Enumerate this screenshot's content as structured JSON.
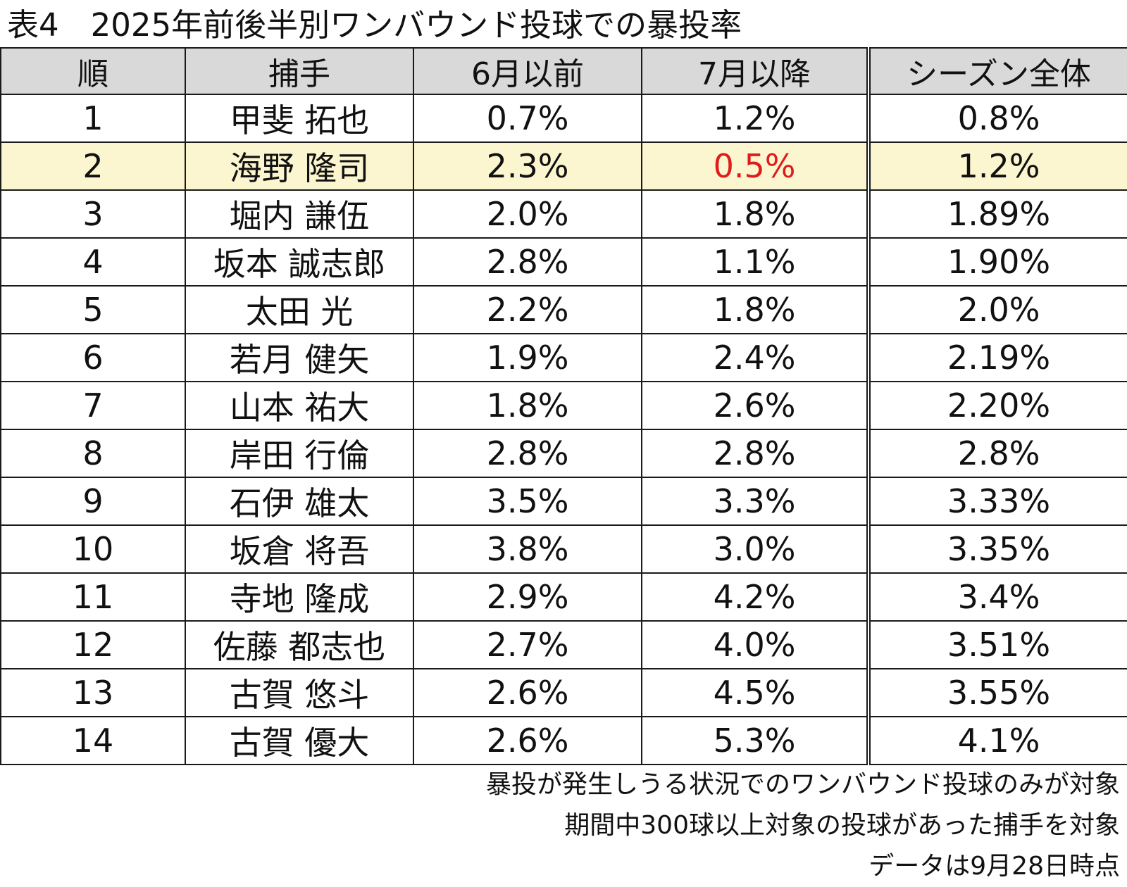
{
  "title": "表4　2025年前後半別ワンバウンド投球での暴投率",
  "colors": {
    "header_bg": "#d9d9d9",
    "highlight_bg": "#fbf6cf",
    "highlight_text": "#e01b1b"
  },
  "chart_data": {
    "type": "table",
    "title": "表4　2025年前後半別ワンバウンド投球での暴投率",
    "columns": [
      "順",
      "捕手",
      "6月以前",
      "7月以降",
      "シーズン全体"
    ],
    "rows": [
      [
        "1",
        "甲斐 拓也",
        "0.7%",
        "1.2%",
        "0.8%"
      ],
      [
        "2",
        "海野 隆司",
        "2.3%",
        "0.5%",
        "1.2%"
      ],
      [
        "3",
        "堀内 謙伍",
        "2.0%",
        "1.8%",
        "1.89%"
      ],
      [
        "4",
        "坂本 誠志郎",
        "2.8%",
        "1.1%",
        "1.90%"
      ],
      [
        "5",
        "太田 光",
        "2.2%",
        "1.8%",
        "2.0%"
      ],
      [
        "6",
        "若月 健矢",
        "1.9%",
        "2.4%",
        "2.19%"
      ],
      [
        "7",
        "山本 祐大",
        "1.8%",
        "2.6%",
        "2.20%"
      ],
      [
        "8",
        "岸田 行倫",
        "2.8%",
        "2.8%",
        "2.8%"
      ],
      [
        "9",
        "石伊 雄太",
        "3.5%",
        "3.3%",
        "3.33%"
      ],
      [
        "10",
        "坂倉 将吾",
        "3.8%",
        "3.0%",
        "3.35%"
      ],
      [
        "11",
        "寺地 隆成",
        "2.9%",
        "4.2%",
        "3.4%"
      ],
      [
        "12",
        "佐藤 都志也",
        "2.7%",
        "4.0%",
        "3.51%"
      ],
      [
        "13",
        "古賀 悠斗",
        "2.6%",
        "4.5%",
        "3.55%"
      ],
      [
        "14",
        "古賀 優大",
        "2.6%",
        "5.3%",
        "4.1%"
      ]
    ],
    "highlight_row": 1,
    "highlight_red_cell": [
      1,
      3
    ]
  },
  "notes": [
    "暴投が発生しうる状況でのワンバウンド投球のみが対象",
    "期間中300球以上対象の投球があった捕手を対象",
    "データは9月28日時点"
  ]
}
